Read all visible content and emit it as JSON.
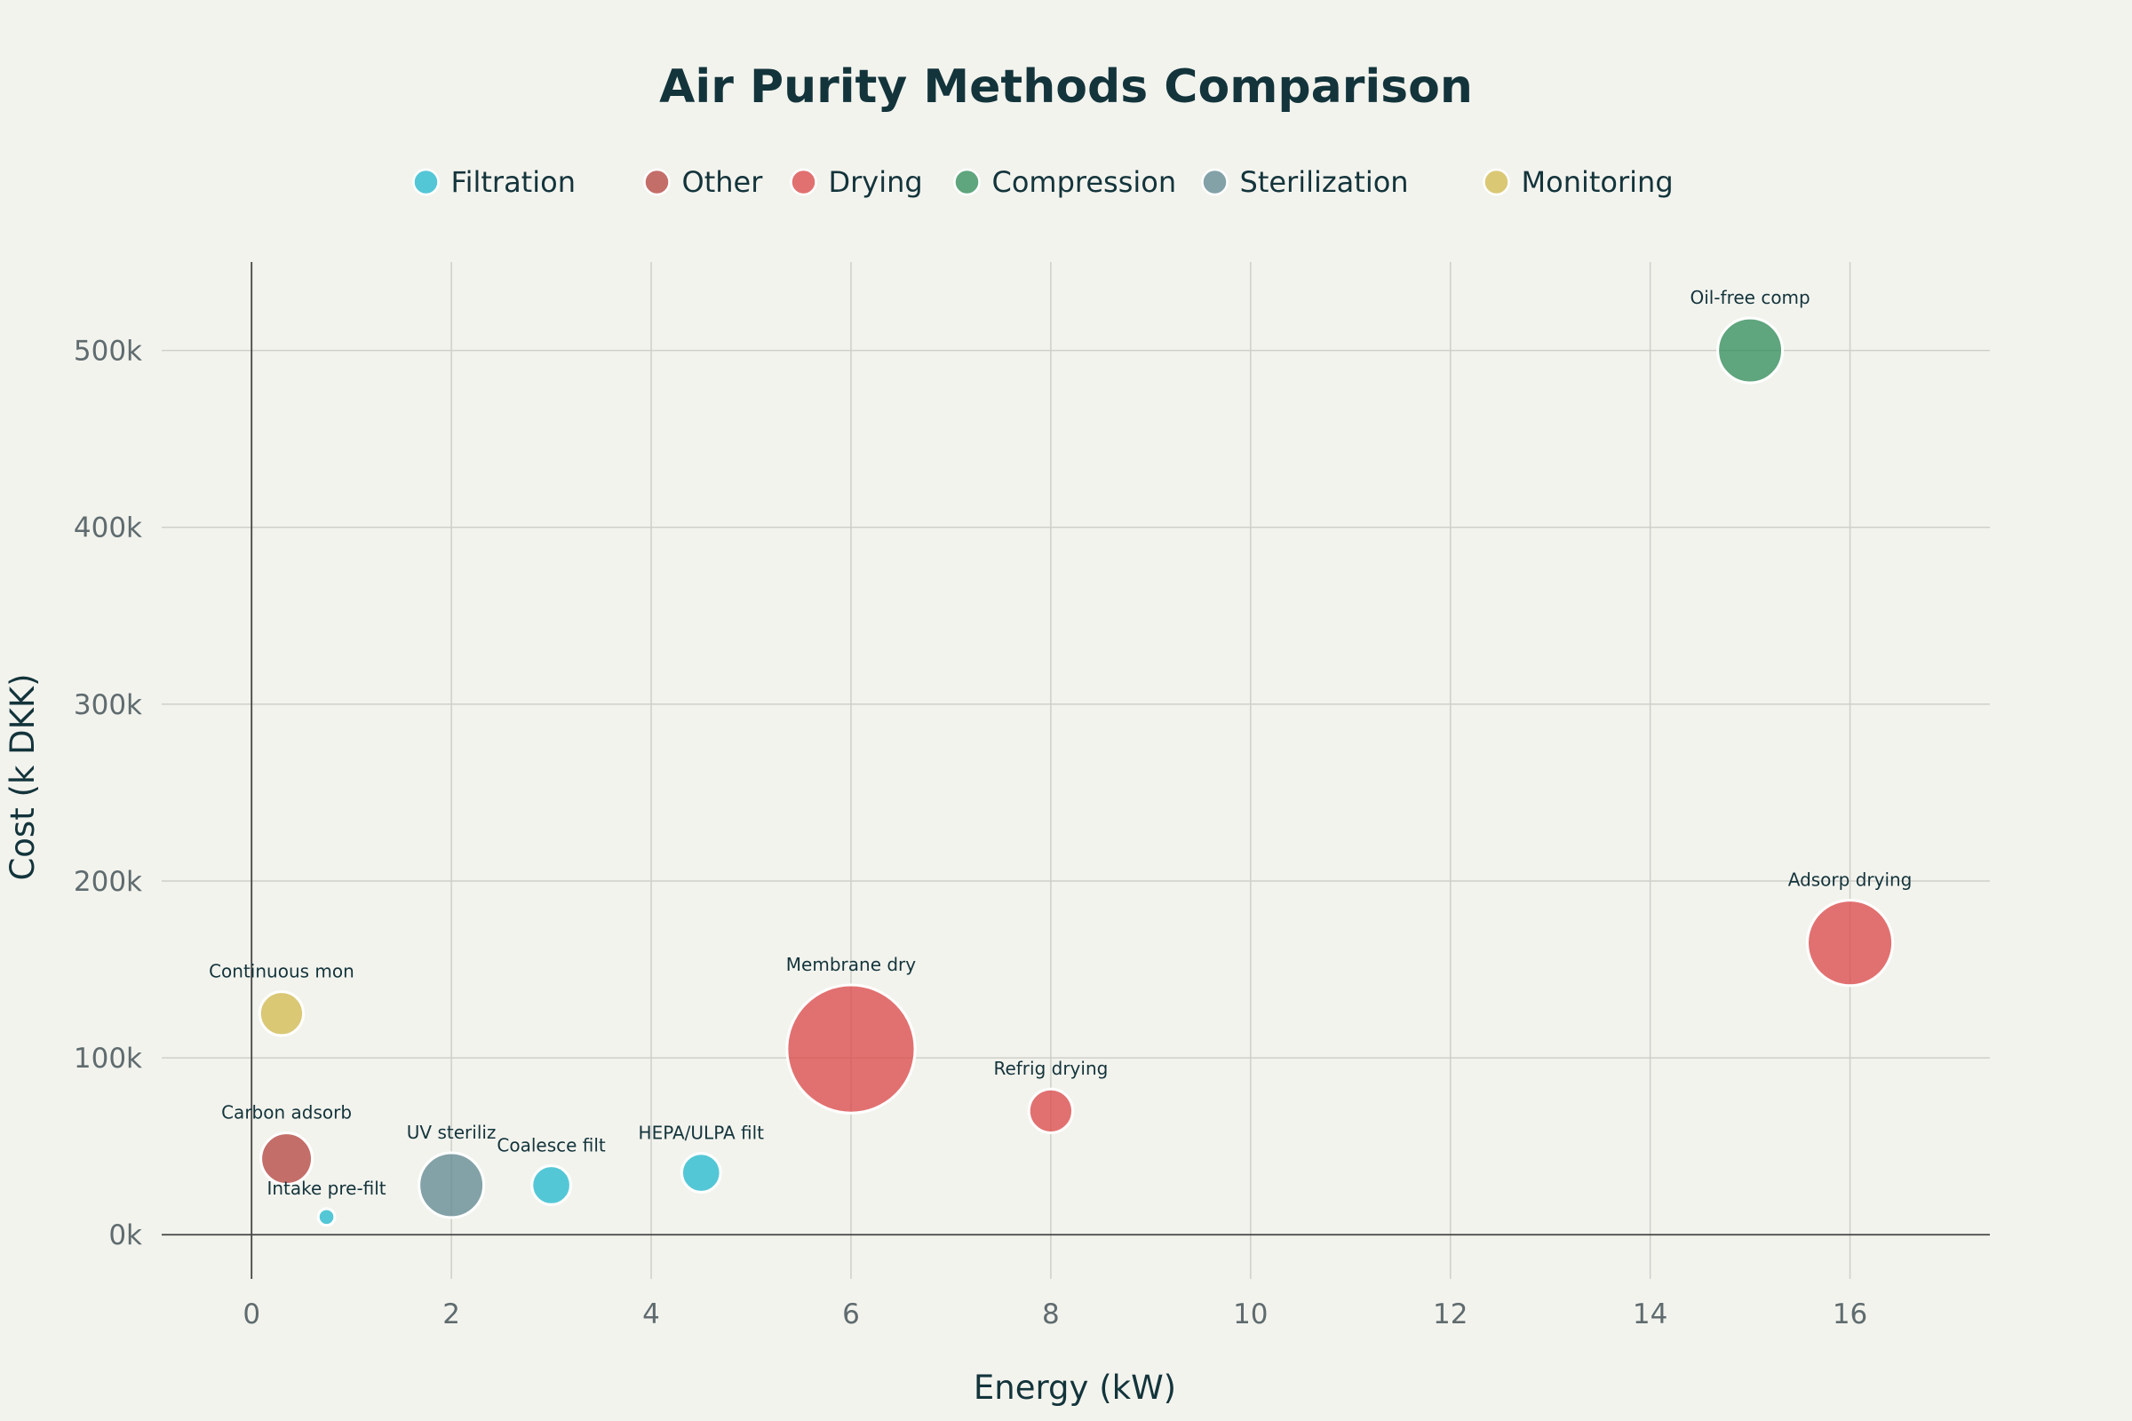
{
  "chart_data": {
    "type": "scatter",
    "title": "Air Purity Methods Comparison",
    "xlabel": "Energy (kW)",
    "ylabel": "Cost (k DKK)",
    "xlim": [
      -0.9,
      17.4
    ],
    "ylim": [
      -25000,
      550000
    ],
    "xticks": [
      0,
      2,
      4,
      6,
      8,
      10,
      12,
      14,
      16
    ],
    "yticks": [
      0,
      100000,
      200000,
      300000,
      400000,
      500000
    ],
    "ytick_labels": [
      "0k",
      "100k",
      "200k",
      "300k",
      "400k",
      "500k"
    ],
    "grid": true,
    "legend_position": "top",
    "categories": [
      {
        "name": "Filtration",
        "color": "#1fb8cd"
      },
      {
        "name": "Other",
        "color": "#b4413c"
      },
      {
        "name": "Drying",
        "color": "#db4545"
      },
      {
        "name": "Compression",
        "color": "#2e8b57"
      },
      {
        "name": "Sterilization",
        "color": "#5d878f"
      },
      {
        "name": "Monitoring",
        "color": "#d2ba4c"
      }
    ],
    "points": [
      {
        "label": "Intake pre-filt",
        "category": "Filtration",
        "x": 0.75,
        "y": 10000,
        "size": 0.06
      },
      {
        "label": "Carbon adsorb",
        "category": "Other",
        "x": 0.35,
        "y": 43000,
        "size": 0.58
      },
      {
        "label": "Continuous mon",
        "category": "Monitoring",
        "x": 0.3,
        "y": 125000,
        "size": 0.42
      },
      {
        "label": "UV steriliz",
        "category": "Sterilization",
        "x": 2.0,
        "y": 28000,
        "size": 0.92
      },
      {
        "label": "Coalesce filt",
        "category": "Filtration",
        "x": 3.0,
        "y": 28000,
        "size": 0.33
      },
      {
        "label": "HEPA/ULPA filt",
        "category": "Filtration",
        "x": 4.5,
        "y": 35000,
        "size": 0.33
      },
      {
        "label": "Membrane dry",
        "category": "Drying",
        "x": 6.0,
        "y": 105000,
        "size": 3.6
      },
      {
        "label": "Refrig drying",
        "category": "Drying",
        "x": 8.0,
        "y": 70000,
        "size": 0.42
      },
      {
        "label": "Oil-free comp",
        "category": "Compression",
        "x": 15.0,
        "y": 500000,
        "size": 0.92
      },
      {
        "label": "Adsorp drying",
        "category": "Drying",
        "x": 16.0,
        "y": 165000,
        "size": 1.6
      }
    ]
  }
}
